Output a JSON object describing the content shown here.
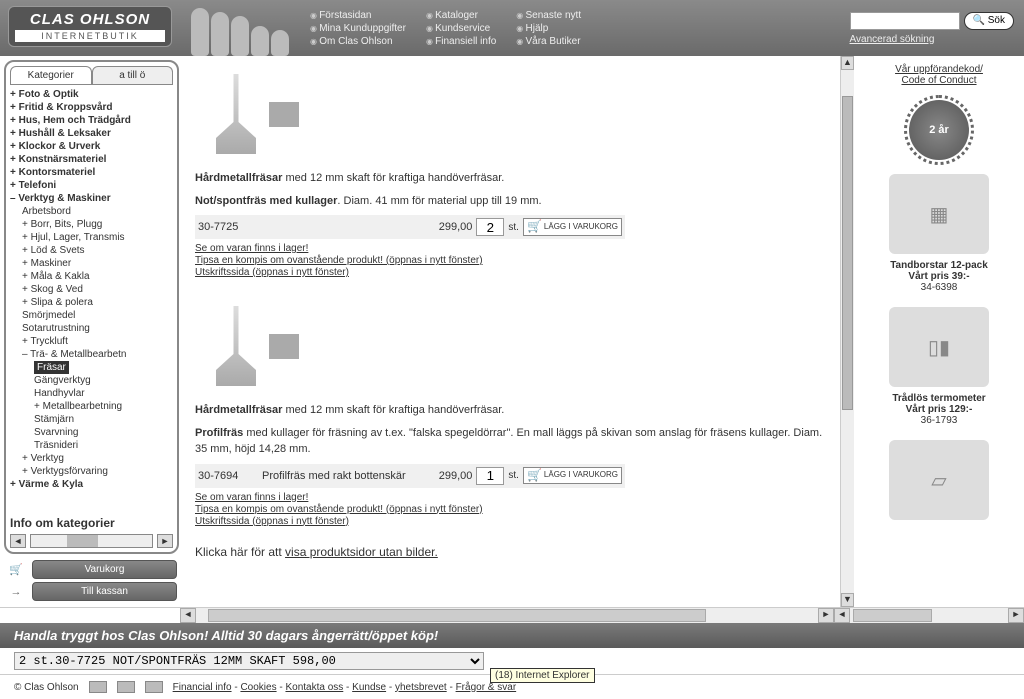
{
  "logo": {
    "brand": "CLAS OHLSON",
    "sub": "INTERNETBUTIK"
  },
  "nav": {
    "col1": [
      "Förstasidan",
      "Mina Kunduppgifter",
      "Om Clas Ohlson"
    ],
    "col2": [
      "Kataloger",
      "Kundservice",
      "Finansiell info"
    ],
    "col3": [
      "Senaste nytt",
      "Hjälp",
      "Våra Butiker"
    ]
  },
  "search": {
    "placeholder": "",
    "button": "Sök",
    "advanced": "Avancerad sökning"
  },
  "tabs": {
    "active": "Kategorier",
    "inactive": "a till ö"
  },
  "categories": [
    {
      "l": 0,
      "t": "+ Foto & Optik"
    },
    {
      "l": 0,
      "t": "+ Fritid & Kroppsvård"
    },
    {
      "l": 0,
      "t": "+ Hus, Hem och Trädgård"
    },
    {
      "l": 0,
      "t": "+ Hushåll & Leksaker"
    },
    {
      "l": 0,
      "t": "+ Klockor & Urverk"
    },
    {
      "l": 0,
      "t": "+ Konstnärsmateriel"
    },
    {
      "l": 0,
      "t": "+ Kontorsmateriel"
    },
    {
      "l": 0,
      "t": "+ Telefoni"
    },
    {
      "l": 0,
      "t": "– Verktyg & Maskiner"
    },
    {
      "l": 1,
      "t": "Arbetsbord"
    },
    {
      "l": 1,
      "t": "+ Borr, Bits, Plugg"
    },
    {
      "l": 1,
      "t": "+ Hjul, Lager, Transmis"
    },
    {
      "l": 1,
      "t": "+ Löd & Svets"
    },
    {
      "l": 1,
      "t": "+ Maskiner"
    },
    {
      "l": 1,
      "t": "+ Måla & Kakla"
    },
    {
      "l": 1,
      "t": "+ Skog & Ved"
    },
    {
      "l": 1,
      "t": "+ Slipa & polera"
    },
    {
      "l": 1,
      "t": "Smörjmedel"
    },
    {
      "l": 1,
      "t": "Sotarutrustning"
    },
    {
      "l": 1,
      "t": "+ Tryckluft"
    },
    {
      "l": 1,
      "t": "– Trä- & Metallbearbetn"
    },
    {
      "l": 2,
      "t": "Fräsar",
      "sel": true
    },
    {
      "l": 2,
      "t": "Gängverktyg"
    },
    {
      "l": 2,
      "t": "Handhyvlar"
    },
    {
      "l": 2,
      "t": "+ Metallbearbetning"
    },
    {
      "l": 2,
      "t": "Stämjärn"
    },
    {
      "l": 2,
      "t": "Svarvning"
    },
    {
      "l": 2,
      "t": "Träsnideri"
    },
    {
      "l": 1,
      "t": "+ Verktyg"
    },
    {
      "l": 1,
      "t": "+ Verktygsförvaring"
    },
    {
      "l": 0,
      "t": "+ Värme & Kyla"
    }
  ],
  "info_kat": "Info om kategorier",
  "cart_btns": {
    "varukorg": "Varukorg",
    "kassan": "Till kassan"
  },
  "product1": {
    "desc1a": "Hårdmetallfräsar",
    "desc1b": " med 12 mm skaft för kraftiga handöverfräsar.",
    "desc2a": "Not/spontfräs med kullager",
    "desc2b": ". Diam. 41 mm för material upp till 19 mm.",
    "art": "30-7725",
    "price": "299,00",
    "qty": "2",
    "st": "st.",
    "addcart": "LÄGG I\nVARUKORG",
    "link1": "Se om varan finns i lager!",
    "link2": "Tipsa en kompis om ovanstående produkt! (öppnas i nytt fönster)",
    "link3": "Utskriftssida (öppnas i nytt fönster)"
  },
  "product2": {
    "desc1a": "Hårdmetallfräsar",
    "desc1b": " med 12 mm skaft för kraftiga handöverfräsar.",
    "desc2a": "Profilfräs",
    "desc2b": " med kullager för fräsning av t.ex. \"falska spegeldörrar\". En mall läggs på skivan som anslag för fräsens kullager. Diam. 35 mm, höjd 14,28 mm.",
    "art": "30-7694",
    "name": "Profilfräs med rakt bottenskär",
    "price": "299,00",
    "qty": "1",
    "st": "st.",
    "addcart": "LÄGG I\nVARUKORG",
    "link1": "Se om varan finns i lager!",
    "link2": "Tipsa en kompis om ovanstående produkt! (öppnas i nytt fönster)",
    "link3": "Utskriftssida (öppnas i nytt fönster)"
  },
  "noimg": {
    "pre": "Klicka här för att ",
    "link": "visa produktsidor utan bilder."
  },
  "right": {
    "conduct": "Vår uppförandekod/\nCode of Conduct",
    "badge": "2 år",
    "promo1": {
      "title": "Tandborstar 12-pack",
      "price": "Vårt pris 39:-",
      "art": "34-6398"
    },
    "promo2": {
      "title": "Trådlös termometer",
      "price": "Vårt pris 129:-",
      "art": "36-1793"
    }
  },
  "banner": "Handla tryggt hos Clas Ohlson! Alltid 30 dagars ångerrätt/öppet köp!",
  "cart_line": "2 st.30-7725    NOT/SPONTFRÄS 12MM SKAFT          598,00",
  "footer": {
    "copy": "© Clas Ohlson",
    "links": [
      "Financial info",
      "Cookies",
      "Kontakta oss",
      "Kundse",
      "yhetsbrevet",
      "Frågor & svar"
    ]
  },
  "ie_tip": "(18) Internet Explorer"
}
